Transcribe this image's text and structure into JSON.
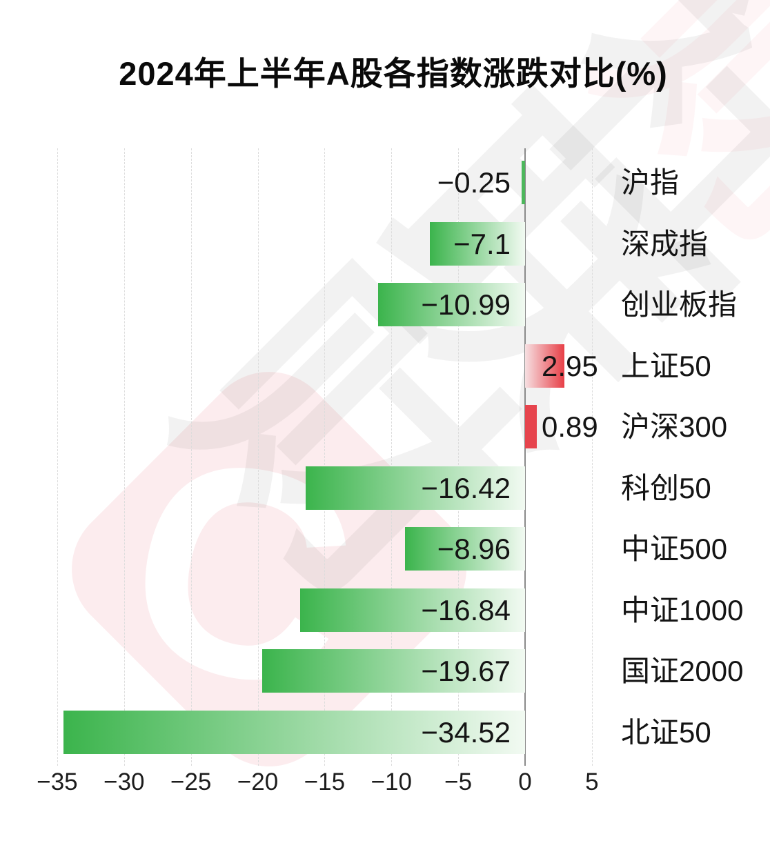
{
  "title": "2024年上半年A股各指数涨跌对比(%)",
  "watermark": {
    "logo_letter": "C",
    "brand_chars": [
      "财",
      "联",
      "社"
    ],
    "pink_fill": "#fcecee",
    "pink_char_color": "rgba(232,62,70,0.05)",
    "gray_char_color": "rgba(0,0,0,0.05)"
  },
  "chart_data": {
    "type": "bar",
    "orientation": "horizontal",
    "title": "2024年上半年A股各指数涨跌对比(%)",
    "categories": [
      "沪指",
      "深成指",
      "创业板指",
      "上证50",
      "沪深300",
      "科创50",
      "中证500",
      "中证1000",
      "国证2000",
      "北证50"
    ],
    "values": [
      -0.25,
      -7.1,
      -10.99,
      2.95,
      0.89,
      -16.42,
      -8.96,
      -16.84,
      -19.67,
      -34.52
    ],
    "value_labels": [
      "−0.25",
      "−7.1",
      "−10.99",
      "2.95",
      "0.89",
      "−16.42",
      "−8.96",
      "−16.84",
      "−19.67",
      "−34.52"
    ],
    "x_ticks": [
      -35,
      -30,
      -25,
      -20,
      -15,
      -10,
      -5,
      0,
      5
    ],
    "x_tick_labels": [
      "−35",
      "−30",
      "−25",
      "−20",
      "−15",
      "−10",
      "−5",
      "0",
      "5"
    ],
    "xlim": [
      -36,
      9
    ],
    "grid": "vertical-dashed",
    "legend": "none",
    "colors": {
      "negative_dark": "#3bb44c",
      "negative_light": "#f2faf2",
      "negative_solid": "#4db75c",
      "positive_dark": "#e73f47",
      "positive_light": "#f6dfe1",
      "positive_solid": "#e6444d",
      "zero_axis": "#8a8a8a",
      "gridline": "#dcdcdc"
    }
  }
}
